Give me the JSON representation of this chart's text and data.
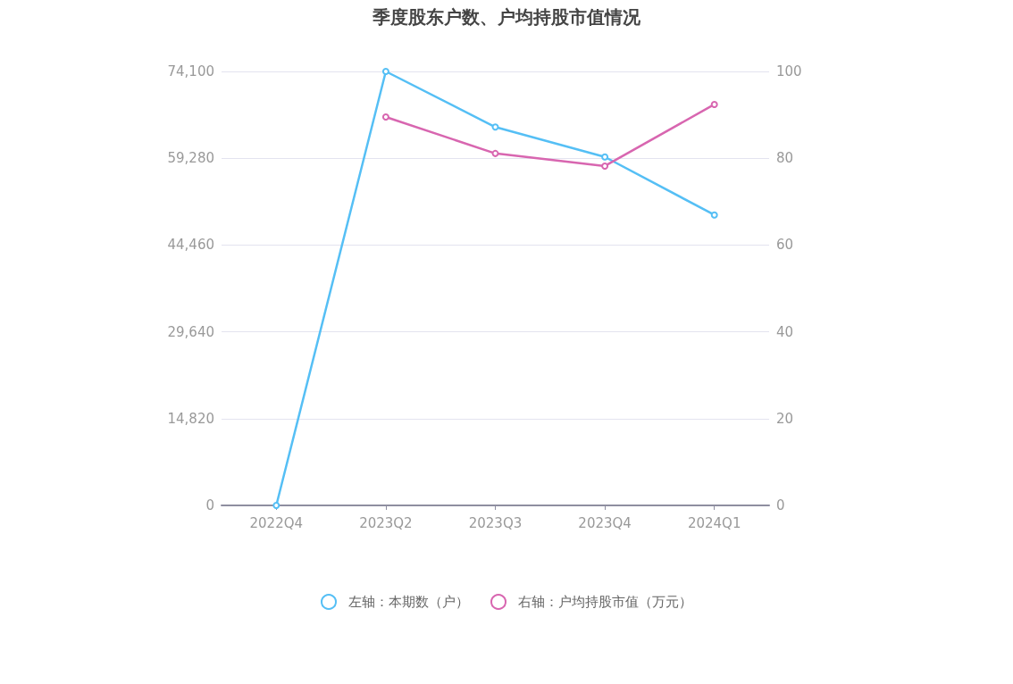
{
  "chart_data": {
    "type": "line",
    "title": "季度股东户数、户均持股市值情况",
    "categories": [
      "2022Q4",
      "2023Q2",
      "2023Q3",
      "2023Q4",
      "2024Q1"
    ],
    "series": [
      {
        "name": "左轴：本期数（户）",
        "color": "#55bff5",
        "values": [
          0,
          74100,
          64600,
          59500,
          49600
        ]
      },
      {
        "name": "右轴：户均持股市值（万元）",
        "color": "#d866b0",
        "axis": "y2",
        "values": [
          null,
          89.5,
          81.1,
          78.2,
          92.4
        ]
      }
    ],
    "ylim": [
      0,
      74100
    ],
    "yticks": [
      0,
      {
        "value": 14820,
        "label": "14,820"
      },
      {
        "value": 29640,
        "label": "29,640"
      },
      {
        "value": 44460,
        "label": "44,460"
      },
      {
        "value": 59280,
        "label": "59,280"
      },
      {
        "value": 74100,
        "label": "74,100"
      }
    ],
    "y2lim": [
      0,
      100
    ],
    "y2ticks": [
      0,
      20,
      40,
      60,
      80,
      100
    ],
    "grid": "y",
    "legend": "bottom",
    "marker": "circle",
    "line_style": "solid"
  }
}
